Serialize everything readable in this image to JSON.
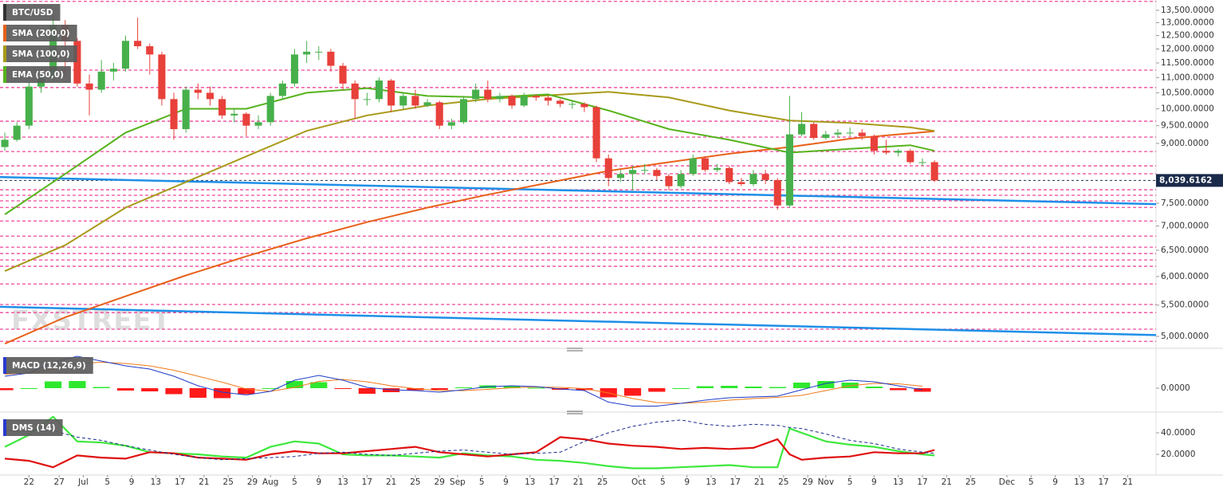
{
  "chart_data": [
    {
      "type": "candlestick",
      "title": "BTC/USD",
      "log_scale": true,
      "watermark": "FXSTREET",
      "up_color": "#47b04b",
      "down_color": "#e8403a",
      "xlim": [
        -4.8,
        186.7
      ],
      "ylim": [
        4880,
        13930
      ],
      "yticks": [
        {
          "value": 13500,
          "label": "13,500.0000"
        },
        {
          "value": 13000,
          "label": "13,000.0000"
        },
        {
          "value": 12500,
          "label": "12,500.0000"
        },
        {
          "value": 12000,
          "label": "12,000.0000"
        },
        {
          "value": 11500,
          "label": "11,500.0000"
        },
        {
          "value": 11000,
          "label": "11,000.0000"
        },
        {
          "value": 10500,
          "label": "10,500.0000"
        },
        {
          "value": 10000,
          "label": "10,000.0000"
        },
        {
          "value": 9500,
          "label": "9,500.0000"
        },
        {
          "value": 9000,
          "label": "9,000.0000"
        },
        {
          "value": 7500,
          "label": "7,500.0000"
        },
        {
          "value": 7000,
          "label": "7,000.0000"
        },
        {
          "value": 6500,
          "label": "6,500.0000"
        },
        {
          "value": 6000,
          "label": "6,000.0000"
        },
        {
          "value": 5500,
          "label": "5,500.0000"
        },
        {
          "value": 5000,
          "label": "5,000.0000"
        }
      ],
      "x": [
        -4,
        -2,
        0,
        2,
        4,
        6,
        8,
        10,
        12,
        14,
        16,
        18,
        20,
        22,
        24,
        26,
        28,
        30,
        32,
        34,
        36,
        38,
        40,
        42,
        44,
        46,
        48,
        50,
        52,
        54,
        56,
        58,
        60,
        62,
        64,
        66,
        68,
        70,
        72,
        74,
        76,
        78,
        80,
        82,
        84,
        86,
        88,
        90,
        92,
        94,
        96,
        98,
        100,
        102,
        104,
        106,
        108,
        110,
        112,
        114,
        116,
        118,
        120,
        122,
        124,
        126,
        128,
        130,
        132,
        134,
        136,
        138,
        140,
        142,
        144,
        146,
        148,
        150
      ],
      "open": [
        8900,
        9100,
        9500,
        10700,
        11000,
        12900,
        12300,
        10800,
        10600,
        11200,
        11300,
        12300,
        12100,
        11800,
        10300,
        9400,
        10600,
        10500,
        10300,
        9800,
        9850,
        9500,
        9600,
        10400,
        10800,
        11800,
        11900,
        11900,
        11400,
        10800,
        10300,
        10300,
        10900,
        10100,
        10400,
        10100,
        10200,
        9500,
        9600,
        10300,
        10600,
        10300,
        10400,
        10100,
        10400,
        10350,
        10250,
        10150,
        10150,
        10050,
        8600,
        8100,
        8200,
        8300,
        8300,
        8150,
        7900,
        8200,
        8600,
        8300,
        8350,
        8000,
        7950,
        8200,
        8050,
        7450,
        9250,
        9550,
        9150,
        9250,
        9300,
        9300,
        9200,
        8800,
        8750,
        8800,
        8500,
        8500
      ],
      "high": [
        9300,
        9600,
        10900,
        11200,
        13400,
        13100,
        12400,
        11100,
        11600,
        11500,
        12500,
        13200,
        12200,
        11900,
        10500,
        10700,
        10800,
        10700,
        10400,
        10000,
        9900,
        9800,
        10500,
        10900,
        12000,
        12300,
        12100,
        12000,
        11500,
        10900,
        10500,
        11000,
        10950,
        10500,
        10600,
        10300,
        10250,
        9700,
        10400,
        10800,
        10900,
        10500,
        10450,
        10500,
        10450,
        10400,
        10300,
        10250,
        10200,
        10100,
        8700,
        8300,
        8400,
        8450,
        8350,
        8200,
        8300,
        8700,
        8650,
        8450,
        8400,
        8100,
        8300,
        8300,
        8100,
        10400,
        9900,
        9600,
        9350,
        9400,
        9450,
        9400,
        9250,
        9100,
        8850,
        8850,
        8600,
        8550
      ],
      "low": [
        8800,
        9050,
        9400,
        10500,
        10900,
        11000,
        10700,
        9800,
        10500,
        10900,
        11200,
        12000,
        11100,
        10100,
        9100,
        9300,
        10300,
        10100,
        9700,
        9600,
        9200,
        9400,
        9500,
        10300,
        10700,
        11500,
        11600,
        11200,
        10600,
        9700,
        10100,
        10200,
        9900,
        10000,
        10000,
        10050,
        9400,
        9400,
        9550,
        10200,
        10200,
        10200,
        10000,
        10050,
        10250,
        10100,
        10050,
        10000,
        9900,
        8500,
        7900,
        8000,
        7800,
        8200,
        8050,
        7800,
        7850,
        8150,
        8250,
        8250,
        7950,
        7900,
        7900,
        7950,
        7350,
        7400,
        9200,
        9100,
        9100,
        9150,
        9200,
        9100,
        8700,
        8700,
        8650,
        8450,
        8400,
        8000
      ],
      "close": [
        9100,
        9500,
        10700,
        11000,
        12900,
        12300,
        10800,
        10600,
        11200,
        11300,
        12300,
        12100,
        11800,
        10300,
        9400,
        10600,
        10500,
        10300,
        9800,
        9850,
        9500,
        9600,
        10400,
        10800,
        11800,
        11900,
        11900,
        11400,
        10800,
        10300,
        10300,
        10900,
        10100,
        10400,
        10100,
        10200,
        9500,
        9600,
        10300,
        10600,
        10300,
        10400,
        10100,
        10400,
        10350,
        10250,
        10150,
        10150,
        10050,
        8600,
        8100,
        8200,
        8300,
        8300,
        8150,
        7900,
        8200,
        8600,
        8300,
        8350,
        8000,
        7950,
        8200,
        8050,
        7450,
        9250,
        9550,
        9150,
        9250,
        9300,
        9300,
        9200,
        8800,
        8750,
        8800,
        8500,
        8500,
        8039.6162
      ],
      "overlays": [
        {
          "name": "SMA (200,0)",
          "color": "#e8611a",
          "x": [
            -4,
            6,
            16,
            26,
            36,
            46,
            56,
            66,
            76,
            86,
            96,
            106,
            116,
            126,
            136,
            146,
            150
          ],
          "values": [
            4890,
            5300,
            5650,
            6020,
            6380,
            6740,
            7080,
            7400,
            7700,
            7980,
            8280,
            8500,
            8720,
            8900,
            9130,
            9280,
            9340
          ]
        },
        {
          "name": "SMA (100,0)",
          "color": "#a89a1a",
          "x": [
            -4,
            6,
            16,
            26,
            36,
            46,
            56,
            66,
            76,
            86,
            96,
            106,
            116,
            126,
            136,
            146,
            150
          ],
          "values": [
            6100,
            6600,
            7400,
            8000,
            8650,
            9350,
            9800,
            10100,
            10300,
            10420,
            10530,
            10350,
            9950,
            9650,
            9580,
            9450,
            9350
          ]
        },
        {
          "name": "EMA (50,0)",
          "color": "#56b31c",
          "x": [
            -4,
            6,
            16,
            26,
            36,
            46,
            56,
            66,
            76,
            86,
            96,
            106,
            116,
            126,
            136,
            146,
            150
          ],
          "values": [
            7250,
            8200,
            9300,
            10000,
            10000,
            10500,
            10650,
            10400,
            10350,
            10450,
            9950,
            9400,
            9100,
            8750,
            8850,
            8950,
            8800
          ]
        }
      ],
      "trendlines": [
        {
          "color": "#1e8fe8",
          "x": [
            -4.8,
            186.7
          ],
          "values": [
            8124,
            7480
          ]
        },
        {
          "color": "#1e8fe8",
          "x": [
            -4.8,
            186.7
          ],
          "values": [
            5471,
            5020
          ]
        }
      ],
      "levels": {
        "color": "#f0479b",
        "values": [
          13870,
          11250,
          10670,
          9630,
          9175,
          8780,
          8405,
          8205,
          7815,
          7685,
          7555,
          7405,
          7105,
          6785,
          6560,
          6435,
          6310,
          6190,
          5865,
          5510,
          5375,
          5110,
          4925
        ]
      },
      "last_price": {
        "value": 8039.6162,
        "label": "8,039.6162",
        "color": "#1a2a4a"
      }
    },
    {
      "type": "macd",
      "title": "MACD (12,26,9)",
      "xlim": [
        -4.8,
        186.7
      ],
      "ylim": [
        -500,
        840
      ],
      "yticks": [
        {
          "value": 0,
          "label": "0.0000"
        }
      ],
      "x": [
        -4,
        0,
        4,
        8,
        12,
        16,
        20,
        24,
        28,
        32,
        36,
        40,
        44,
        48,
        52,
        56,
        60,
        64,
        68,
        72,
        76,
        80,
        84,
        88,
        92,
        96,
        100,
        104,
        108,
        112,
        116,
        120,
        124,
        128,
        132,
        136,
        140,
        144,
        148
      ],
      "macd": {
        "color": "#1e3cc8",
        "values": [
          300,
          380,
          650,
          800,
          680,
          560,
          480,
          300,
          60,
          -100,
          -170,
          -80,
          200,
          320,
          200,
          20,
          -40,
          -60,
          -100,
          -40,
          40,
          60,
          40,
          -20,
          -60,
          -350,
          -450,
          -450,
          -380,
          -300,
          -240,
          -220,
          -200,
          -40,
          120,
          200,
          160,
          60,
          -40
        ]
      },
      "signal": {
        "color": "#f07a1a",
        "values": [
          350,
          380,
          480,
          620,
          650,
          620,
          560,
          450,
          300,
          150,
          -20,
          -80,
          20,
          170,
          220,
          160,
          60,
          -10,
          -60,
          -60,
          -30,
          10,
          30,
          20,
          -10,
          -120,
          -260,
          -360,
          -380,
          -350,
          -300,
          -260,
          -230,
          -180,
          -60,
          60,
          120,
          110,
          50
        ]
      },
      "histogram": {
        "positive_color": "#2ee82e",
        "negative_color": "#ff1a1a",
        "values": [
          -50,
          0,
          170,
          180,
          30,
          -60,
          -80,
          -150,
          -240,
          -250,
          -150,
          0,
          180,
          150,
          -20,
          -140,
          -100,
          -50,
          -40,
          20,
          70,
          50,
          10,
          -40,
          -50,
          -230,
          -190,
          -90,
          0,
          50,
          60,
          40,
          30,
          140,
          180,
          140,
          40,
          -50,
          -90
        ]
      }
    },
    {
      "type": "line",
      "title": "DMS (14)",
      "xlim": [
        -4.8,
        186.7
      ],
      "ylim": [
        3.7,
        55.6
      ],
      "yticks": [
        {
          "value": 40,
          "label": "40.0000"
        },
        {
          "value": 20,
          "label": "20.0000"
        }
      ],
      "xticks": [
        {
          "value": 0,
          "label": "22"
        },
        {
          "value": 5,
          "label": "27"
        },
        {
          "value": 9,
          "label": "Jul"
        },
        {
          "value": 13,
          "label": "5"
        },
        {
          "value": 17,
          "label": "9"
        },
        {
          "value": 21,
          "label": "13"
        },
        {
          "value": 25,
          "label": "17"
        },
        {
          "value": 29,
          "label": "21"
        },
        {
          "value": 33,
          "label": "25"
        },
        {
          "value": 37,
          "label": "29"
        },
        {
          "value": 40,
          "label": "Aug"
        },
        {
          "value": 44,
          "label": "5"
        },
        {
          "value": 48,
          "label": "9"
        },
        {
          "value": 52,
          "label": "13"
        },
        {
          "value": 56,
          "label": "17"
        },
        {
          "value": 60,
          "label": "21"
        },
        {
          "value": 64,
          "label": "25"
        },
        {
          "value": 68,
          "label": "29"
        },
        {
          "value": 71,
          "label": "Sep"
        },
        {
          "value": 75,
          "label": "5"
        },
        {
          "value": 79,
          "label": "9"
        },
        {
          "value": 83,
          "label": "13"
        },
        {
          "value": 87,
          "label": "17"
        },
        {
          "value": 91,
          "label": "21"
        },
        {
          "value": 95,
          "label": "25"
        },
        {
          "value": 101,
          "label": "Oct"
        },
        {
          "value": 105,
          "label": "5"
        },
        {
          "value": 109,
          "label": "9"
        },
        {
          "value": 113,
          "label": "13"
        },
        {
          "value": 117,
          "label": "17"
        },
        {
          "value": 121,
          "label": "21"
        },
        {
          "value": 125,
          "label": "25"
        },
        {
          "value": 129,
          "label": "29"
        },
        {
          "value": 132,
          "label": "Nov"
        },
        {
          "value": 136,
          "label": "5"
        },
        {
          "value": 140,
          "label": "9"
        },
        {
          "value": 144,
          "label": "13"
        },
        {
          "value": 148,
          "label": "17"
        },
        {
          "value": 152,
          "label": "21"
        },
        {
          "value": 156,
          "label": "25"
        },
        {
          "value": 162,
          "label": "Dec"
        },
        {
          "value": 166,
          "label": "5"
        },
        {
          "value": 170,
          "label": "9"
        },
        {
          "value": 174,
          "label": "13"
        },
        {
          "value": 178,
          "label": "17"
        },
        {
          "value": 182,
          "label": "21"
        }
      ],
      "x": [
        -4,
        0,
        4,
        8,
        12,
        16,
        20,
        24,
        28,
        32,
        36,
        40,
        44,
        48,
        52,
        56,
        60,
        64,
        68,
        72,
        76,
        80,
        84,
        88,
        92,
        96,
        100,
        104,
        108,
        112,
        116,
        120,
        124,
        126,
        128,
        132,
        136,
        140,
        144,
        148,
        150
      ],
      "series": [
        {
          "color": "#3de83d",
          "style": "solid",
          "values": [
            27,
            38,
            55,
            32,
            31,
            28,
            22,
            21,
            20,
            18,
            17,
            27,
            32,
            30,
            20,
            19,
            19,
            18,
            17,
            21,
            19,
            18,
            15,
            14,
            12,
            9,
            7,
            7,
            8,
            9,
            10,
            8,
            8,
            44,
            40,
            32,
            29,
            27,
            23,
            20,
            19
          ]
        },
        {
          "color": "#e01010",
          "style": "solid",
          "values": [
            16,
            14,
            8,
            19,
            17,
            16,
            22,
            21,
            17,
            16,
            15,
            20,
            23,
            21,
            21,
            23,
            25,
            27,
            22,
            20,
            18,
            20,
            22,
            36,
            34,
            30,
            28,
            27,
            25,
            26,
            25,
            26,
            34,
            20,
            15,
            17,
            18,
            22,
            21,
            21,
            24
          ]
        },
        {
          "color": "#1a2a8a",
          "style": "dashed",
          "values": [
            42,
            42,
            42,
            36,
            33,
            28,
            24,
            20,
            17,
            15,
            16,
            17,
            18,
            21,
            22,
            20,
            19,
            21,
            23,
            24,
            22,
            20,
            21,
            22,
            32,
            40,
            46,
            50,
            52,
            48,
            46,
            48,
            47,
            45,
            44,
            39,
            33,
            30,
            25,
            22,
            21
          ]
        }
      ]
    }
  ]
}
